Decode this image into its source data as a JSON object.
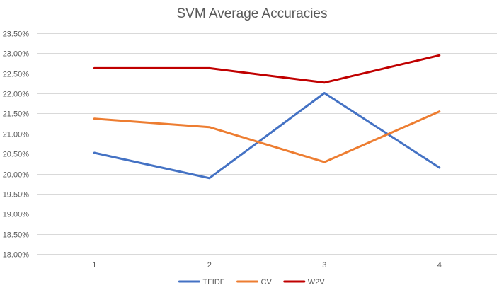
{
  "chart_data": {
    "type": "line",
    "title": "SVM Average Accuracies",
    "xlabel": "",
    "ylabel": "",
    "categories": [
      "1",
      "2",
      "3",
      "4"
    ],
    "ylim": [
      18.0,
      23.5
    ],
    "y_ticks": [
      "18.00%",
      "18.50%",
      "19.00%",
      "19.50%",
      "20.00%",
      "20.50%",
      "21.00%",
      "21.50%",
      "22.00%",
      "22.50%",
      "23.00%",
      "23.50%"
    ],
    "y_unit": "%",
    "grid": true,
    "legend_position": "bottom",
    "series": [
      {
        "name": "TFIDF",
        "color": "#4472c4",
        "values": [
          20.52,
          19.89,
          22.01,
          20.15
        ]
      },
      {
        "name": "CV",
        "color": "#ed7d31",
        "values": [
          21.37,
          21.16,
          20.29,
          21.55
        ]
      },
      {
        "name": "W2V",
        "color": "#c00000",
        "values": [
          22.63,
          22.63,
          22.27,
          22.95
        ]
      }
    ]
  }
}
